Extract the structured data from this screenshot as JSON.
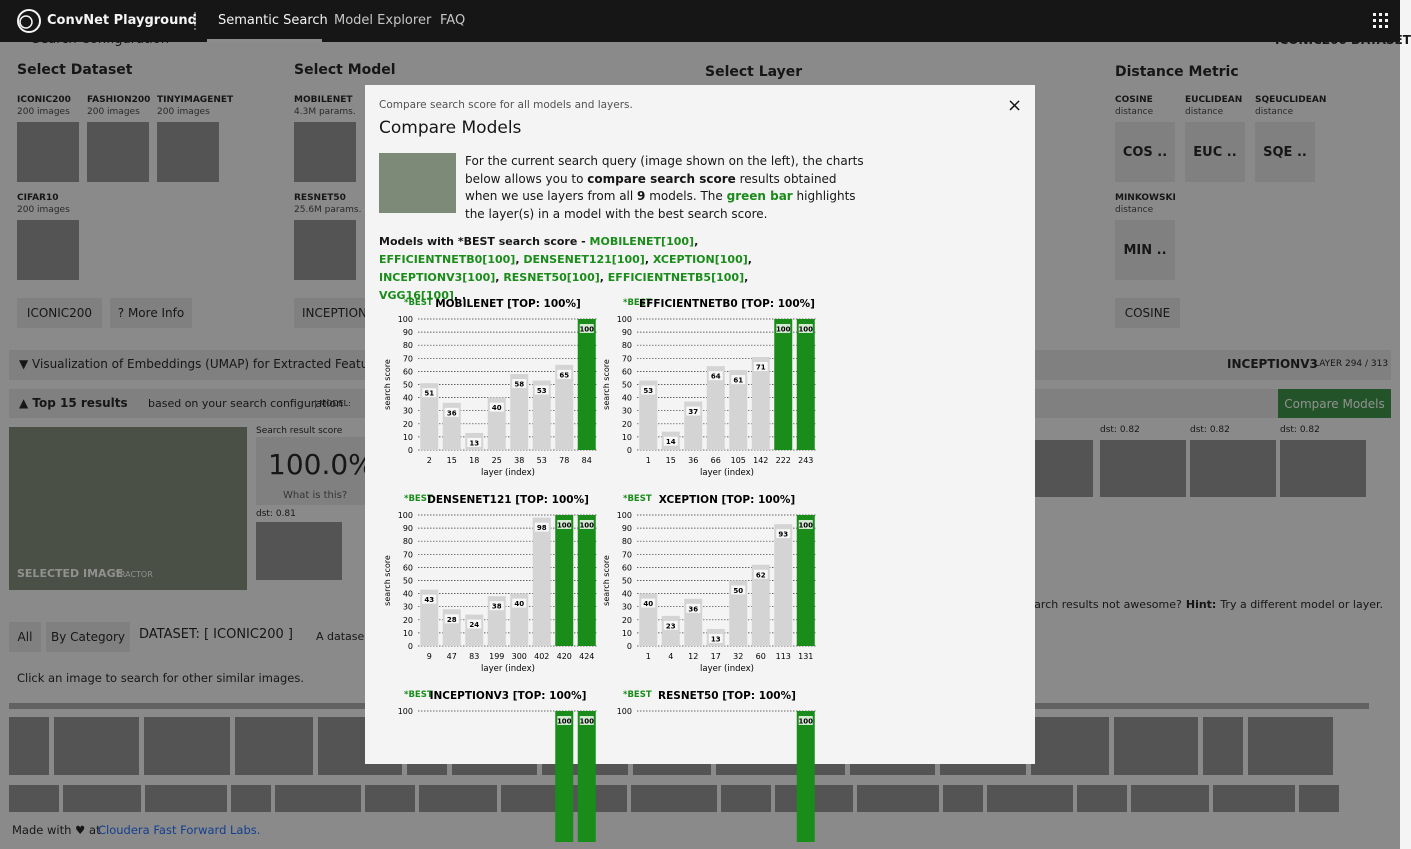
{
  "nav": {
    "brand": "ConvNet Playground",
    "tabs": [
      "Semantic Search",
      "Model Explorer",
      "FAQ"
    ]
  },
  "background": {
    "config_title": "Search Configuration",
    "config_right": "ICONIC200 DATASET",
    "dataset": {
      "heading": "Select Dataset",
      "items": [
        {
          "name": "ICONIC200",
          "sub": "200 images"
        },
        {
          "name": "FASHION200",
          "sub": "200 images"
        },
        {
          "name": "TINYIMAGENET",
          "sub": "200 images"
        },
        {
          "name": "CIFAR10",
          "sub": "200 images"
        }
      ],
      "button": "ICONIC200",
      "more": "? More Info"
    },
    "model": {
      "heading": "Select Model",
      "items": [
        {
          "name": "MOBILENET",
          "sub": "4.3M params."
        },
        {
          "name": "RESNET50",
          "sub": "25.6M params."
        }
      ],
      "button": "INCEPTION"
    },
    "layer": {
      "heading": "Select Layer"
    },
    "metric": {
      "heading": "Distance Metric",
      "items": [
        {
          "name": "COSINE",
          "sub": "distance",
          "short": "COS .."
        },
        {
          "name": "EUCLIDEAN",
          "sub": "distance",
          "short": "EUC .."
        },
        {
          "name": "SQEUCLIDEAN",
          "sub": "distance",
          "short": "SQE .."
        },
        {
          "name": "MINKOWSKI",
          "sub": "distance",
          "short": "MIN .."
        }
      ],
      "button": "COSINE"
    },
    "umap": "▼ Visualization of Embeddings (UMAP) for Extracted Features",
    "umap_model": "INCEPTIONV3",
    "umap_layer": "LAYER 294 / 313",
    "results_title": "▲ Top 15 results",
    "results_sub": "based on your search configuration",
    "results_model": "| MODEL:",
    "compare_button": "Compare Models",
    "selected": "SELECTED IMAGE",
    "selected_sub": "TRACTOR",
    "score_label": "Search result score",
    "score": "100.0%",
    "what": "What is this?",
    "left_dst": "dst: 0.81",
    "right_dst": [
      "dst: 0.82",
      "dst: 0.82",
      "dst: 0.82"
    ],
    "hint": [
      "Search results not awesome?",
      "Hint:",
      "Try a different model or layer."
    ],
    "tabs": [
      "All",
      "By Category"
    ],
    "dataset_label": "DATASET: [ ICONIC200 ]",
    "dataset_desc": "A datase",
    "click": "Click an image to search for other similar images.",
    "footer": [
      "Made with ♥ at",
      "Cloudera Fast Forward Labs."
    ]
  },
  "modal": {
    "kicker": "Compare search score for all models and layers.",
    "title": "Compare Models",
    "intro": [
      "For the current search query (image shown on the left), the charts below allows you to ",
      "compare search score",
      " results obtained when we use layers from all ",
      "9",
      " models. The ",
      "green bar",
      " highlights the layer(s) in a model with the best search score."
    ],
    "best_lead": "Models with *BEST search score - ",
    "best_models": [
      "MOBILENET[100]",
      "EFFICIENTNETB0[100]",
      "DENSENET121[100]",
      "XCEPTION[100]",
      "INCEPTIONV3[100]",
      "RESNET50[100]",
      "EFFICIENTNETB5[100]",
      "VGG16[100]"
    ],
    "best_separator": ", ",
    "best_end": ", .",
    "close": "×"
  },
  "chart_data": [
    {
      "type": "bar",
      "best_label": "*BEST",
      "title": "MOBILENET [TOP: 100%]",
      "x_label": "layer (index)",
      "y_label": "search score",
      "categories": [
        "2",
        "15",
        "18",
        "25",
        "38",
        "53",
        "78",
        "84"
      ],
      "values": [
        51,
        36,
        13,
        40,
        58,
        53,
        65,
        100
      ],
      "colors": [
        "#d4d4d4",
        "#d4d4d4",
        "#d4d4d4",
        "#d4d4d4",
        "#d4d4d4",
        "#d4d4d4",
        "#d4d4d4",
        "#198c19"
      ],
      "ylim": [
        0,
        100
      ],
      "yticks": [
        0,
        10,
        20,
        30,
        40,
        50,
        60,
        70,
        80,
        90,
        100
      ],
      "grid": true
    },
    {
      "type": "bar",
      "best_label": "*BEST",
      "title": "EFFICIENTNETB0 [TOP: 100%]",
      "x_label": "layer (index)",
      "y_label": "search score",
      "categories": [
        "1",
        "15",
        "36",
        "66",
        "105",
        "142",
        "222",
        "243"
      ],
      "values": [
        53,
        14,
        37,
        64,
        61,
        71,
        100,
        100
      ],
      "colors": [
        "#d4d4d4",
        "#d4d4d4",
        "#d4d4d4",
        "#d4d4d4",
        "#d4d4d4",
        "#d4d4d4",
        "#198c19",
        "#198c19"
      ],
      "ylim": [
        0,
        100
      ],
      "yticks": [
        0,
        10,
        20,
        30,
        40,
        50,
        60,
        70,
        80,
        90,
        100
      ],
      "grid": true
    },
    {
      "type": "bar",
      "best_label": "*BEST",
      "title": "DENSENET121 [TOP: 100%]",
      "x_label": "layer (index)",
      "y_label": "search score",
      "categories": [
        "9",
        "47",
        "83",
        "199",
        "300",
        "402",
        "420",
        "424"
      ],
      "values": [
        43,
        28,
        24,
        38,
        40,
        98,
        100,
        100
      ],
      "colors": [
        "#d4d4d4",
        "#d4d4d4",
        "#d4d4d4",
        "#d4d4d4",
        "#d4d4d4",
        "#d4d4d4",
        "#198c19",
        "#198c19"
      ],
      "ylim": [
        0,
        100
      ],
      "yticks": [
        0,
        10,
        20,
        30,
        40,
        50,
        60,
        70,
        80,
        90,
        100
      ],
      "grid": true
    },
    {
      "type": "bar",
      "best_label": "*BEST",
      "title": "XCEPTION [TOP: 100%]",
      "x_label": "layer (index)",
      "y_label": "search score",
      "categories": [
        "1",
        "4",
        "12",
        "17",
        "32",
        "60",
        "113",
        "131"
      ],
      "values": [
        40,
        23,
        36,
        13,
        50,
        62,
        93,
        100
      ],
      "colors": [
        "#d4d4d4",
        "#d4d4d4",
        "#d4d4d4",
        "#d4d4d4",
        "#d4d4d4",
        "#d4d4d4",
        "#d4d4d4",
        "#198c19"
      ],
      "ylim": [
        0,
        100
      ],
      "yticks": [
        0,
        10,
        20,
        30,
        40,
        50,
        60,
        70,
        80,
        90,
        100
      ],
      "grid": true
    },
    {
      "type": "bar",
      "best_label": "*BEST",
      "title": "INCEPTIONV3 [TOP: 100%]",
      "values": [
        null,
        null,
        null,
        null,
        null,
        null,
        100,
        100
      ],
      "colors": [
        "#d4d4d4",
        "#d4d4d4",
        "#d4d4d4",
        "#d4d4d4",
        "#d4d4d4",
        "#d4d4d4",
        "#198c19",
        "#198c19"
      ],
      "ylim": [
        0,
        100
      ],
      "yticks": [
        100
      ],
      "grid": true
    },
    {
      "type": "bar",
      "best_label": "*BEST",
      "title": "RESNET50 [TOP: 100%]",
      "values": [
        null,
        null,
        null,
        null,
        null,
        null,
        null,
        100
      ],
      "colors": [
        "#d4d4d4",
        "#d4d4d4",
        "#d4d4d4",
        "#d4d4d4",
        "#d4d4d4",
        "#d4d4d4",
        "#d4d4d4",
        "#198c19"
      ],
      "ylim": [
        0,
        100
      ],
      "yticks": [
        100
      ],
      "grid": true
    }
  ]
}
